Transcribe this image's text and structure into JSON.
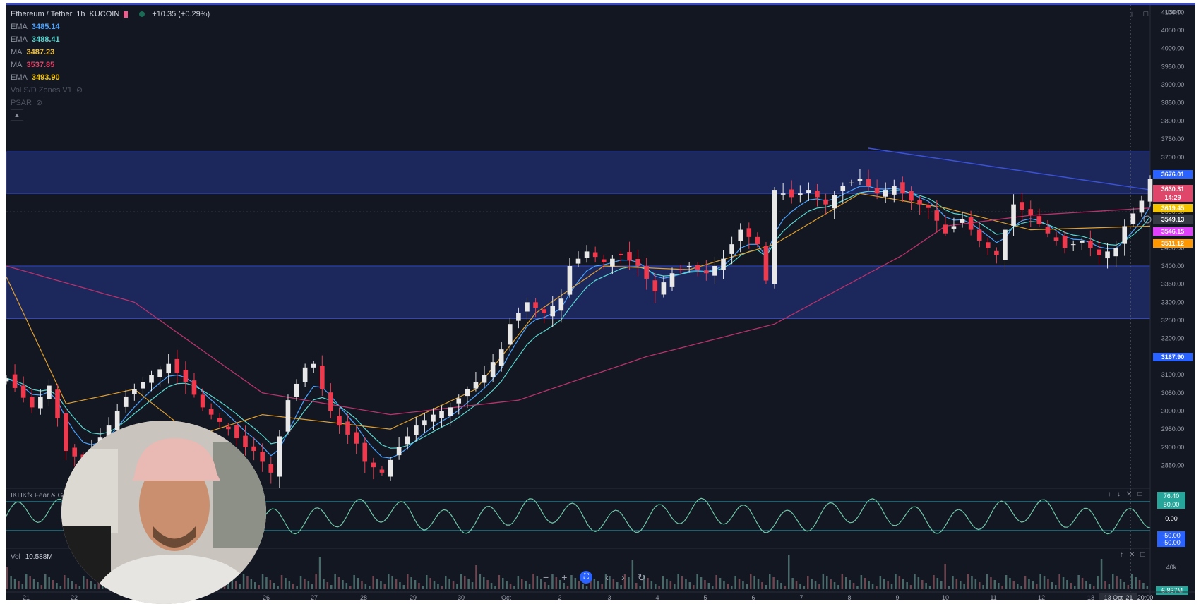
{
  "header": {
    "symbol": "Ethereum / Tether",
    "interval": "1h",
    "exchange": "KUCOIN",
    "change": "+10.35 (+0.29%)"
  },
  "indicators": [
    {
      "name": "EMA",
      "value": "3485.14",
      "color": "#4ba3ff"
    },
    {
      "name": "EMA",
      "value": "3488.41",
      "color": "#5ad6d0"
    },
    {
      "name": "MA",
      "value": "3487.23",
      "color": "#f0c040"
    },
    {
      "name": "MA",
      "value": "3537.85",
      "color": "#e0466a"
    },
    {
      "name": "EMA",
      "value": "3493.90",
      "color": "#f5c400"
    },
    {
      "name": "Vol S/D Zones V1",
      "value": "",
      "color": "#5d6270"
    },
    {
      "name": "PSAR",
      "value": "",
      "color": "#5d6270"
    }
  ],
  "price_axis": {
    "currency": "USDT",
    "ticks": [
      "4100.00",
      "4050.00",
      "4000.00",
      "3950.00",
      "3900.00",
      "3850.00",
      "3800.00",
      "3750.00",
      "3700.00",
      "3650.00",
      "3600.00",
      "3550.00",
      "3500.00",
      "3450.00",
      "3400.00",
      "3350.00",
      "3300.00",
      "3250.00",
      "3200.00",
      "3150.00",
      "3100.00",
      "3050.00",
      "3000.00",
      "2950.00",
      "2900.00",
      "2850.00"
    ],
    "labels": [
      {
        "text": "3676.01",
        "color": "#2962ff"
      },
      {
        "text": "3630.31",
        "color": "#e0466a"
      },
      {
        "text": "14:29",
        "color": "#e0466a"
      },
      {
        "text": "3619.45",
        "color": "#f5c400"
      },
      {
        "text": "3549.13",
        "color": "#363a45"
      },
      {
        "text": "3546.15",
        "color": "#e040fb"
      },
      {
        "text": "3511.12",
        "color": "#ff9800"
      },
      {
        "text": "3167.90",
        "color": "#2962ff"
      }
    ]
  },
  "time_axis": {
    "ticks": [
      "21",
      "22",
      "26",
      "27",
      "28",
      "29",
      "30",
      "Oct",
      "2",
      "3",
      "4",
      "5",
      "6",
      "7",
      "8",
      "9",
      "10",
      "11",
      "12",
      "13"
    ],
    "current": "13 Oct '21",
    "time": "20:00"
  },
  "oscillator": {
    "title": "IKHKfx Fear & Greed",
    "values": [
      "76.40",
      "50.00",
      "0.00",
      "-50.00",
      "-50.00"
    ]
  },
  "volume": {
    "title": "Vol",
    "value": "10.588M",
    "axis_label": "40k",
    "last_label": "6.837M"
  },
  "chart_data": {
    "type": "candlestick",
    "title": "Ethereum / Tether",
    "ylabel": "USDT",
    "ylim": [
      2820,
      4120
    ],
    "zones": [
      [
        3600,
        3715
      ],
      [
        3255,
        3400
      ]
    ],
    "x_ticks": [
      "21",
      "22",
      "26",
      "27",
      "28",
      "29",
      "30",
      "Oct",
      "2",
      "3",
      "4",
      "5",
      "6",
      "7",
      "8",
      "9",
      "10",
      "11",
      "12",
      "13"
    ],
    "close_path": [
      [
        0,
        3090
      ],
      [
        3,
        3010
      ],
      [
        5,
        3070
      ],
      [
        7,
        2890
      ],
      [
        9,
        2860
      ],
      [
        12,
        2960
      ],
      [
        14,
        3040
      ],
      [
        17,
        3100
      ],
      [
        19,
        3130
      ],
      [
        21,
        3080
      ],
      [
        23,
        3010
      ],
      [
        26,
        2950
      ],
      [
        28,
        2900
      ],
      [
        29,
        2890
      ],
      [
        31,
        2830
      ],
      [
        33,
        3030
      ],
      [
        35,
        3120
      ],
      [
        36,
        3130
      ],
      [
        37,
        3060
      ],
      [
        38,
        3000
      ],
      [
        39,
        2960
      ],
      [
        41,
        2910
      ],
      [
        42,
        2860
      ],
      [
        44,
        2830
      ],
      [
        46,
        2900
      ],
      [
        48,
        2960
      ],
      [
        50,
        2990
      ],
      [
        52,
        3010
      ],
      [
        54,
        3060
      ],
      [
        56,
        3100
      ],
      [
        58,
        3170
      ],
      [
        59,
        3240
      ],
      [
        61,
        3300
      ],
      [
        63,
        3270
      ],
      [
        65,
        3310
      ],
      [
        66,
        3400
      ],
      [
        68,
        3440
      ],
      [
        70,
        3410
      ],
      [
        72,
        3430
      ],
      [
        74,
        3400
      ],
      [
        76,
        3330
      ],
      [
        78,
        3380
      ],
      [
        80,
        3400
      ],
      [
        82,
        3380
      ],
      [
        84,
        3420
      ],
      [
        86,
        3500
      ],
      [
        88,
        3460
      ],
      [
        89,
        3360
      ],
      [
        90,
        3610
      ],
      [
        92,
        3590
      ],
      [
        94,
        3610
      ],
      [
        96,
        3570
      ],
      [
        98,
        3620
      ],
      [
        100,
        3640
      ],
      [
        102,
        3600
      ],
      [
        104,
        3620
      ],
      [
        106,
        3580
      ],
      [
        108,
        3560
      ],
      [
        110,
        3490
      ],
      [
        112,
        3530
      ],
      [
        114,
        3470
      ],
      [
        116,
        3430
      ],
      [
        118,
        3570
      ],
      [
        120,
        3540
      ],
      [
        122,
        3490
      ],
      [
        124,
        3450
      ],
      [
        126,
        3470
      ],
      [
        128,
        3430
      ],
      [
        130,
        3450
      ],
      [
        131,
        3510
      ],
      [
        133,
        3580
      ],
      [
        134,
        3640
      ]
    ],
    "ema_fast_color": "#4ba3ff",
    "ema_mid_color": "#5ad6d0",
    "ma_slow": [
      [
        0,
        3400
      ],
      [
        15,
        3300
      ],
      [
        30,
        3050
      ],
      [
        45,
        2990
      ],
      [
        60,
        3030
      ],
      [
        75,
        3150
      ],
      [
        90,
        3240
      ],
      [
        105,
        3430
      ],
      [
        110,
        3510
      ],
      [
        120,
        3540
      ],
      [
        134,
        3560
      ]
    ],
    "ma_orange": [
      [
        0,
        3370
      ],
      [
        7,
        3020
      ],
      [
        15,
        3060
      ],
      [
        22,
        2930
      ],
      [
        30,
        2990
      ],
      [
        45,
        2950
      ],
      [
        55,
        3060
      ],
      [
        62,
        3270
      ],
      [
        70,
        3400
      ],
      [
        80,
        3390
      ],
      [
        90,
        3460
      ],
      [
        100,
        3600
      ],
      [
        110,
        3560
      ],
      [
        120,
        3500
      ],
      [
        134,
        3510
      ]
    ],
    "downtrend_line": [
      [
        101,
        3725
      ],
      [
        134,
        3610
      ]
    ],
    "current_price": 3549.13,
    "osc_levels": {
      "upper": 50,
      "lower": -50
    }
  }
}
